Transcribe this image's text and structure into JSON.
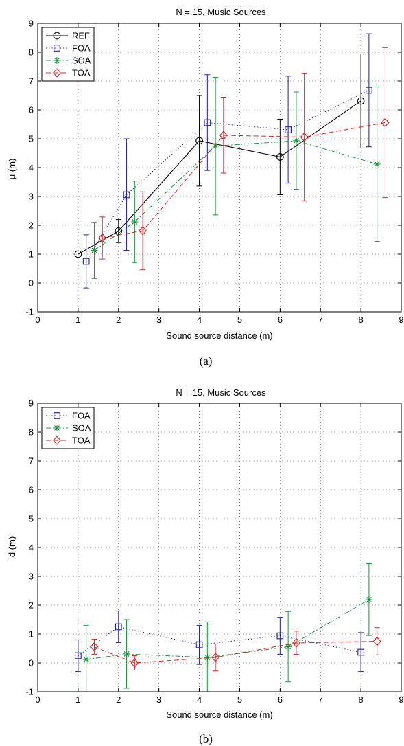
{
  "chart_data": [
    {
      "type": "line",
      "title": "N = 15, Music Sources",
      "xlabel": "Sound source distance (m)",
      "ylabel": "μ (m)",
      "caption": "(a)",
      "xlim": [
        0,
        9
      ],
      "ylim": [
        -1,
        9
      ],
      "xticks": [
        "0",
        "1",
        "2",
        "3",
        "4",
        "5",
        "6",
        "7",
        "8",
        "9"
      ],
      "yticks": [
        "-1",
        "0",
        "1",
        "2",
        "3",
        "4",
        "5",
        "6",
        "7",
        "8",
        "9"
      ],
      "grid": true,
      "legend_position": "top-left",
      "series": [
        {
          "name": "REF",
          "color": "#000000",
          "marker": "circle",
          "line": "solid",
          "points": [
            {
              "x": 1.0,
              "y": 1.0
            },
            {
              "x": 2.0,
              "y": 1.8,
              "lo": 1.4,
              "hi": 2.2
            },
            {
              "x": 4.0,
              "y": 4.93,
              "lo": 3.36,
              "hi": 6.5
            },
            {
              "x": 6.0,
              "y": 4.37,
              "lo": 3.06,
              "hi": 5.68
            },
            {
              "x": 8.0,
              "y": 6.31,
              "lo": 4.68,
              "hi": 7.94
            }
          ]
        },
        {
          "name": "FOA",
          "color": "#1f1f9a",
          "marker": "square",
          "line": "dotted",
          "points": [
            {
              "x": 1.2,
              "y": 0.75,
              "lo": -0.17,
              "hi": 1.67
            },
            {
              "x": 2.2,
              "y": 3.06,
              "lo": 1.13,
              "hi": 5.0
            },
            {
              "x": 4.2,
              "y": 5.56,
              "lo": 3.9,
              "hi": 7.22
            },
            {
              "x": 6.2,
              "y": 5.31,
              "lo": 3.46,
              "hi": 7.17
            },
            {
              "x": 8.2,
              "y": 6.68,
              "lo": 4.72,
              "hi": 8.64
            }
          ]
        },
        {
          "name": "SOA",
          "color": "#129a3c",
          "marker": "star",
          "line": "dashdot",
          "points": [
            {
              "x": 1.4,
              "y": 1.13,
              "lo": 0.16,
              "hi": 2.1
            },
            {
              "x": 2.4,
              "y": 2.12,
              "lo": 0.71,
              "hi": 3.53
            },
            {
              "x": 4.4,
              "y": 4.75,
              "lo": 2.36,
              "hi": 7.13
            },
            {
              "x": 6.4,
              "y": 4.93,
              "lo": 3.25,
              "hi": 6.62
            },
            {
              "x": 8.4,
              "y": 4.12,
              "lo": 1.44,
              "hi": 6.8
            }
          ]
        },
        {
          "name": "TOA",
          "color": "#dd2222",
          "marker": "diamond",
          "line": "dashed",
          "points": [
            {
              "x": 1.6,
              "y": 1.56,
              "lo": 0.83,
              "hi": 2.29
            },
            {
              "x": 2.6,
              "y": 1.81,
              "lo": 0.46,
              "hi": 3.16
            },
            {
              "x": 4.6,
              "y": 5.12,
              "lo": 3.81,
              "hi": 6.44
            },
            {
              "x": 6.6,
              "y": 5.06,
              "lo": 2.85,
              "hi": 7.27
            },
            {
              "x": 8.6,
              "y": 5.56,
              "lo": 2.96,
              "hi": 8.16
            }
          ]
        }
      ]
    },
    {
      "type": "line",
      "title": "N = 15, Music Sources",
      "xlabel": "Sound source distance (m)",
      "ylabel": "d (m)",
      "caption": "(b)",
      "xlim": [
        0,
        9
      ],
      "ylim": [
        -1,
        9
      ],
      "xticks": [
        "0",
        "1",
        "2",
        "3",
        "4",
        "5",
        "6",
        "7",
        "8",
        "9"
      ],
      "yticks": [
        "-1",
        "0",
        "1",
        "2",
        "3",
        "4",
        "5",
        "6",
        "7",
        "8",
        "9"
      ],
      "grid": true,
      "legend_position": "top-left",
      "series": [
        {
          "name": "FOA",
          "color": "#1f1f9a",
          "marker": "square",
          "line": "dotted",
          "points": [
            {
              "x": 1.0,
              "y": 0.25,
              "lo": -0.3,
              "hi": 0.8
            },
            {
              "x": 2.0,
              "y": 1.25,
              "lo": 0.7,
              "hi": 1.8
            },
            {
              "x": 4.0,
              "y": 0.63,
              "lo": -0.05,
              "hi": 1.3
            },
            {
              "x": 6.0,
              "y": 0.94,
              "lo": 0.3,
              "hi": 1.58
            },
            {
              "x": 8.0,
              "y": 0.37,
              "lo": -0.3,
              "hi": 1.05
            }
          ]
        },
        {
          "name": "SOA",
          "color": "#129a3c",
          "marker": "star",
          "line": "dashdot",
          "points": [
            {
              "x": 1.2,
              "y": 0.12,
              "lo": -1.0,
              "hi": 1.3
            },
            {
              "x": 2.2,
              "y": 0.31,
              "lo": -0.88,
              "hi": 1.5
            },
            {
              "x": 4.2,
              "y": 0.19,
              "lo": -1.0,
              "hi": 1.42
            },
            {
              "x": 6.2,
              "y": 0.56,
              "lo": -0.66,
              "hi": 1.78
            },
            {
              "x": 8.2,
              "y": 2.19,
              "lo": 0.95,
              "hi": 3.44
            }
          ]
        },
        {
          "name": "TOA",
          "color": "#dd2222",
          "marker": "diamond",
          "line": "dashed",
          "points": [
            {
              "x": 1.4,
              "y": 0.56,
              "lo": 0.3,
              "hi": 0.82
            },
            {
              "x": 2.4,
              "y": 0.0,
              "lo": -0.25,
              "hi": 0.25
            },
            {
              "x": 4.4,
              "y": 0.19,
              "lo": -0.28,
              "hi": 0.66
            },
            {
              "x": 6.4,
              "y": 0.69,
              "lo": 0.3,
              "hi": 1.1
            },
            {
              "x": 8.4,
              "y": 0.75,
              "lo": 0.28,
              "hi": 1.22
            }
          ]
        }
      ]
    }
  ]
}
